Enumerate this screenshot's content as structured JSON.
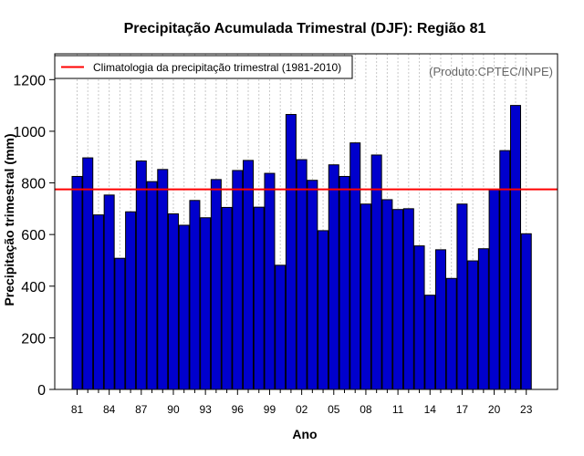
{
  "chart_data": {
    "type": "bar",
    "title": "Precipitação Acumulada Trimestral (DJF): Região 81",
    "xlabel": "Ano",
    "ylabel": "Precipitação trimestral (mm)",
    "credit": "(Produto:CPTEC/INPE)",
    "ylim": [
      0,
      1300
    ],
    "yticks": [
      0,
      200,
      400,
      600,
      800,
      1000,
      1200
    ],
    "grid": "vertical-dotted",
    "legend_position": "top-left",
    "colors": {
      "bar": "#0000cd",
      "bar_edge": "#000000",
      "reference": "#ff0000",
      "grid": "#c8c8c8"
    },
    "categories": [
      "81",
      "82",
      "83",
      "84",
      "85",
      "86",
      "87",
      "88",
      "89",
      "90",
      "91",
      "92",
      "93",
      "94",
      "95",
      "96",
      "97",
      "98",
      "99",
      "00",
      "01",
      "02",
      "03",
      "04",
      "05",
      "06",
      "07",
      "08",
      "09",
      "10",
      "11",
      "12",
      "13",
      "14",
      "15",
      "16",
      "17",
      "18",
      "19",
      "20",
      "21",
      "22",
      "23"
    ],
    "xtick_labels": [
      "81",
      "84",
      "87",
      "90",
      "93",
      "96",
      "99",
      "02",
      "05",
      "08",
      "11",
      "14",
      "17",
      "20",
      "23"
    ],
    "series": [
      {
        "name": "Precipitação trimestral",
        "values": [
          825,
          897,
          676,
          753,
          508,
          688,
          885,
          805,
          852,
          680,
          636,
          732,
          665,
          813,
          705,
          848,
          887,
          706,
          837,
          481,
          1065,
          890,
          810,
          615,
          870,
          825,
          955,
          718,
          908,
          735,
          697,
          700,
          556,
          365,
          541,
          430,
          718,
          498,
          545,
          775,
          925,
          1100,
          603
        ]
      }
    ],
    "reference_line": {
      "name": "Climatologia da precipitação trimestral (1981-2010)",
      "value": 775
    }
  }
}
